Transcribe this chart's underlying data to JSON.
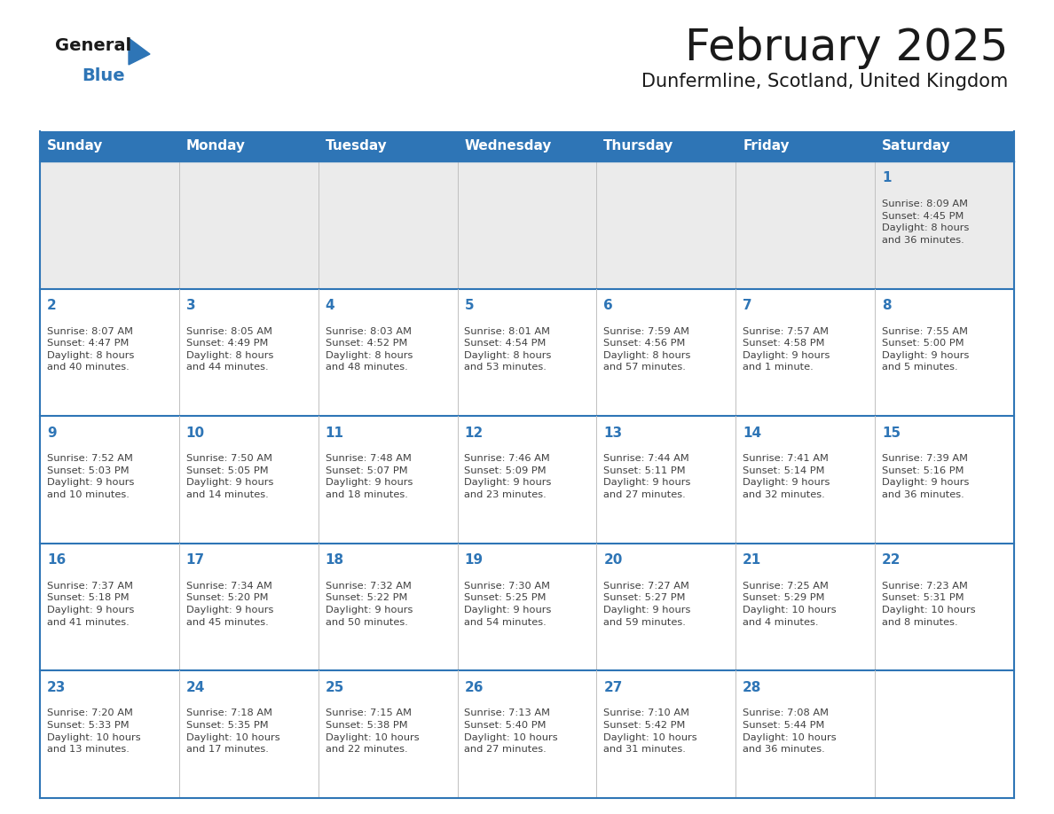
{
  "title": "February 2025",
  "subtitle": "Dunfermline, Scotland, United Kingdom",
  "header_bg": "#2E75B6",
  "header_text_color": "#FFFFFF",
  "week1_bg": "#EBEBEB",
  "cell_bg": "#FFFFFF",
  "border_color": "#2E75B6",
  "inner_border_color": "#C0C0C0",
  "day_number_color": "#2E75B6",
  "cell_text_color": "#404040",
  "title_color": "#1A1A1A",
  "subtitle_color": "#1A1A1A",
  "logo_general_color": "#1A1A1A",
  "logo_blue_color": "#2E75B6",
  "logo_triangle_color": "#2E75B6",
  "days_of_week": [
    "Sunday",
    "Monday",
    "Tuesday",
    "Wednesday",
    "Thursday",
    "Friday",
    "Saturday"
  ],
  "weeks": [
    [
      {
        "day": 0,
        "text": ""
      },
      {
        "day": 0,
        "text": ""
      },
      {
        "day": 0,
        "text": ""
      },
      {
        "day": 0,
        "text": ""
      },
      {
        "day": 0,
        "text": ""
      },
      {
        "day": 0,
        "text": ""
      },
      {
        "day": 1,
        "text": "Sunrise: 8:09 AM\nSunset: 4:45 PM\nDaylight: 8 hours\nand 36 minutes."
      }
    ],
    [
      {
        "day": 2,
        "text": "Sunrise: 8:07 AM\nSunset: 4:47 PM\nDaylight: 8 hours\nand 40 minutes."
      },
      {
        "day": 3,
        "text": "Sunrise: 8:05 AM\nSunset: 4:49 PM\nDaylight: 8 hours\nand 44 minutes."
      },
      {
        "day": 4,
        "text": "Sunrise: 8:03 AM\nSunset: 4:52 PM\nDaylight: 8 hours\nand 48 minutes."
      },
      {
        "day": 5,
        "text": "Sunrise: 8:01 AM\nSunset: 4:54 PM\nDaylight: 8 hours\nand 53 minutes."
      },
      {
        "day": 6,
        "text": "Sunrise: 7:59 AM\nSunset: 4:56 PM\nDaylight: 8 hours\nand 57 minutes."
      },
      {
        "day": 7,
        "text": "Sunrise: 7:57 AM\nSunset: 4:58 PM\nDaylight: 9 hours\nand 1 minute."
      },
      {
        "day": 8,
        "text": "Sunrise: 7:55 AM\nSunset: 5:00 PM\nDaylight: 9 hours\nand 5 minutes."
      }
    ],
    [
      {
        "day": 9,
        "text": "Sunrise: 7:52 AM\nSunset: 5:03 PM\nDaylight: 9 hours\nand 10 minutes."
      },
      {
        "day": 10,
        "text": "Sunrise: 7:50 AM\nSunset: 5:05 PM\nDaylight: 9 hours\nand 14 minutes."
      },
      {
        "day": 11,
        "text": "Sunrise: 7:48 AM\nSunset: 5:07 PM\nDaylight: 9 hours\nand 18 minutes."
      },
      {
        "day": 12,
        "text": "Sunrise: 7:46 AM\nSunset: 5:09 PM\nDaylight: 9 hours\nand 23 minutes."
      },
      {
        "day": 13,
        "text": "Sunrise: 7:44 AM\nSunset: 5:11 PM\nDaylight: 9 hours\nand 27 minutes."
      },
      {
        "day": 14,
        "text": "Sunrise: 7:41 AM\nSunset: 5:14 PM\nDaylight: 9 hours\nand 32 minutes."
      },
      {
        "day": 15,
        "text": "Sunrise: 7:39 AM\nSunset: 5:16 PM\nDaylight: 9 hours\nand 36 minutes."
      }
    ],
    [
      {
        "day": 16,
        "text": "Sunrise: 7:37 AM\nSunset: 5:18 PM\nDaylight: 9 hours\nand 41 minutes."
      },
      {
        "day": 17,
        "text": "Sunrise: 7:34 AM\nSunset: 5:20 PM\nDaylight: 9 hours\nand 45 minutes."
      },
      {
        "day": 18,
        "text": "Sunrise: 7:32 AM\nSunset: 5:22 PM\nDaylight: 9 hours\nand 50 minutes."
      },
      {
        "day": 19,
        "text": "Sunrise: 7:30 AM\nSunset: 5:25 PM\nDaylight: 9 hours\nand 54 minutes."
      },
      {
        "day": 20,
        "text": "Sunrise: 7:27 AM\nSunset: 5:27 PM\nDaylight: 9 hours\nand 59 minutes."
      },
      {
        "day": 21,
        "text": "Sunrise: 7:25 AM\nSunset: 5:29 PM\nDaylight: 10 hours\nand 4 minutes."
      },
      {
        "day": 22,
        "text": "Sunrise: 7:23 AM\nSunset: 5:31 PM\nDaylight: 10 hours\nand 8 minutes."
      }
    ],
    [
      {
        "day": 23,
        "text": "Sunrise: 7:20 AM\nSunset: 5:33 PM\nDaylight: 10 hours\nand 13 minutes."
      },
      {
        "day": 24,
        "text": "Sunrise: 7:18 AM\nSunset: 5:35 PM\nDaylight: 10 hours\nand 17 minutes."
      },
      {
        "day": 25,
        "text": "Sunrise: 7:15 AM\nSunset: 5:38 PM\nDaylight: 10 hours\nand 22 minutes."
      },
      {
        "day": 26,
        "text": "Sunrise: 7:13 AM\nSunset: 5:40 PM\nDaylight: 10 hours\nand 27 minutes."
      },
      {
        "day": 27,
        "text": "Sunrise: 7:10 AM\nSunset: 5:42 PM\nDaylight: 10 hours\nand 31 minutes."
      },
      {
        "day": 28,
        "text": "Sunrise: 7:08 AM\nSunset: 5:44 PM\nDaylight: 10 hours\nand 36 minutes."
      },
      {
        "day": 0,
        "text": ""
      }
    ]
  ]
}
